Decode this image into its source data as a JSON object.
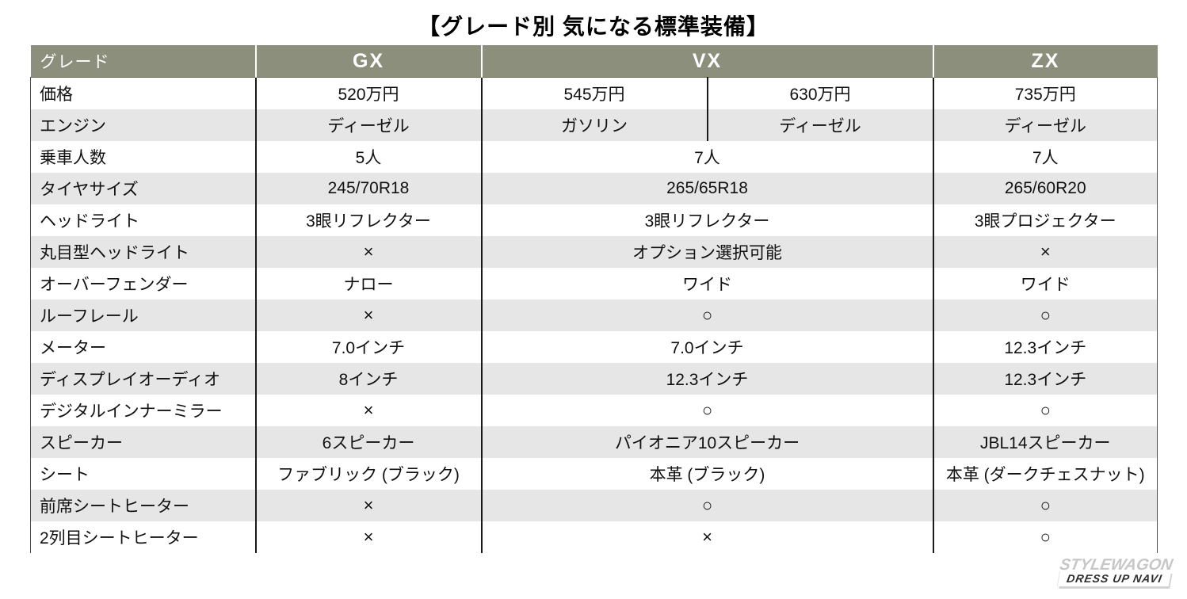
{
  "title": "【グレード別 気になる標準装備】",
  "colors": {
    "header_bg": "#8C8F7C",
    "row_alt_bg": "#E6E6E6",
    "grid_line": "#1A1A1A",
    "header_text": "#FFFFFF"
  },
  "table": {
    "corner_label": "グレード",
    "grades": [
      "GX",
      "VX",
      "ZX"
    ],
    "rows": [
      {
        "label": "価格",
        "gx": "520万円",
        "vx": [
          "545万円",
          "630万円"
        ],
        "zx": "735万円"
      },
      {
        "label": "エンジン",
        "gx": "ディーゼル",
        "vx": [
          "ガソリン",
          "ディーゼル"
        ],
        "zx": "ディーゼル"
      },
      {
        "label": "乗車人数",
        "gx": "5人",
        "vx": "7人",
        "zx": "7人"
      },
      {
        "label": "タイヤサイズ",
        "gx": "245/70R18",
        "vx": "265/65R18",
        "zx": "265/60R20"
      },
      {
        "label": "ヘッドライト",
        "gx": "3眼リフレクター",
        "vx": "3眼リフレクター",
        "zx": "3眼プロジェクター"
      },
      {
        "label": "丸目型ヘッドライト",
        "gx": "×",
        "vx": "オプション選択可能",
        "zx": "×"
      },
      {
        "label": "オーバーフェンダー",
        "gx": "ナロー",
        "vx": "ワイド",
        "zx": "ワイド"
      },
      {
        "label": "ルーフレール",
        "gx": "×",
        "vx": "○",
        "zx": "○"
      },
      {
        "label": "メーター",
        "gx": "7.0インチ",
        "vx": "7.0インチ",
        "zx": "12.3インチ"
      },
      {
        "label": "ディスプレイオーディオ",
        "gx": "8インチ",
        "vx": "12.3インチ",
        "zx": "12.3インチ"
      },
      {
        "label": "デジタルインナーミラー",
        "gx": "×",
        "vx": "○",
        "zx": "○"
      },
      {
        "label": "スピーカー",
        "gx": "6スピーカー",
        "vx": "パイオニア10スピーカー",
        "zx": "JBL14スピーカー"
      },
      {
        "label": "シート",
        "gx": "ファブリック (ブラック)",
        "vx": "本革 (ブラック)",
        "zx": "本革 (ダークチェスナット)"
      },
      {
        "label": "前席シートヒーター",
        "gx": "×",
        "vx": "○",
        "zx": "○"
      },
      {
        "label": "2列目シートヒーター",
        "gx": "×",
        "vx": "×",
        "zx": "○"
      }
    ]
  },
  "footer_logo": {
    "line1": "STYLEWAGON",
    "line2": "DRESS UP NAVI"
  }
}
